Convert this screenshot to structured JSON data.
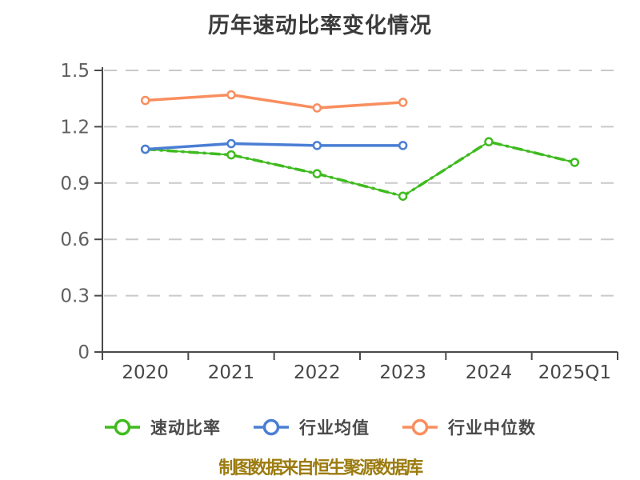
{
  "chart_data": {
    "type": "line",
    "title": "历年速动比率变化情况",
    "categories": [
      "2020",
      "2021",
      "2022",
      "2023",
      "2024",
      "2025Q1"
    ],
    "series": [
      {
        "name": "速动比率",
        "color": "#3fbb1f",
        "line": "dashdot",
        "marker": "circle-open",
        "values": [
          1.08,
          1.05,
          0.95,
          0.83,
          1.12,
          1.01
        ]
      },
      {
        "name": "行业均值",
        "color": "#4a7ed4",
        "line": "solid",
        "marker": "circle-open",
        "values": [
          1.08,
          1.11,
          1.1,
          1.1,
          null,
          null
        ]
      },
      {
        "name": "行业中位数",
        "color": "#f98e5f",
        "line": "solid",
        "marker": "circle-open",
        "values": [
          1.34,
          1.37,
          1.3,
          1.33,
          null,
          null
        ]
      }
    ],
    "ylim": [
      0,
      1.5
    ],
    "yticks": [
      0,
      0.3,
      0.6,
      0.9,
      1.2,
      1.5
    ],
    "ytick_labels": [
      "0",
      "0.3",
      "0.6",
      "0.9",
      "1.2",
      "1.5"
    ],
    "grid": "horizontal-dashed",
    "legend_position": "bottom",
    "colors": {
      "grid": "#c9c9c9",
      "axis": "#4a4a4a",
      "xtick_label": "#474747",
      "ytick_label": "#606060",
      "title": "#3b3b3b",
      "marker_fill": "#ffffff"
    }
  },
  "footer": {
    "text": "制图数据来自恒生聚源数据库",
    "color": "#9c7c10"
  }
}
